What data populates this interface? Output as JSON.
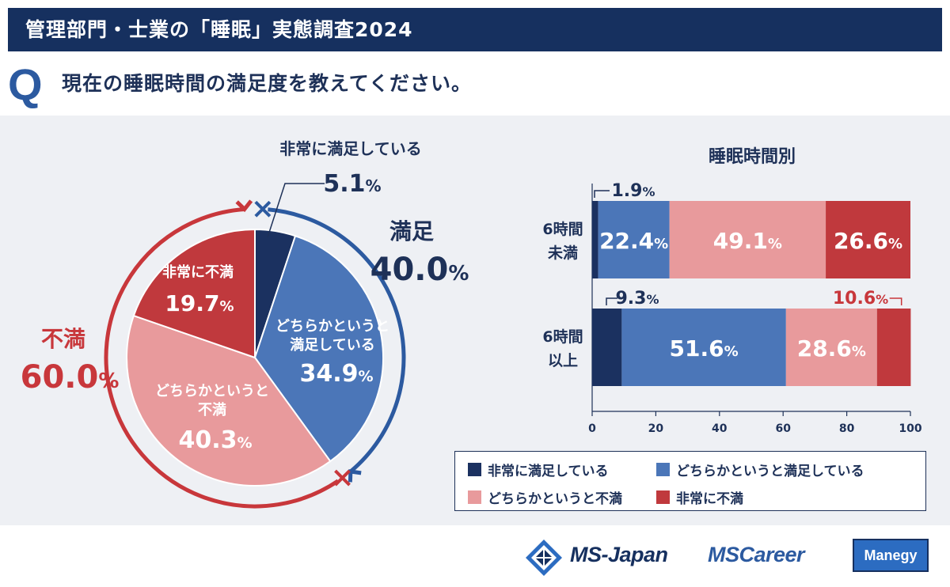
{
  "header": {
    "title": "管理部門・士業の「睡眠」実態調査2024"
  },
  "question": {
    "mark": "Q",
    "text": "現在の睡眠時間の満足度を教えてください。"
  },
  "colors": {
    "very_satisfied": "#1b3160",
    "somewhat_satisfied": "#4b76b8",
    "somewhat_dissatisfied": "#e89a9c",
    "very_dissatisfied": "#c0393d",
    "navy": "#1e3158",
    "blue_arrow": "#2c5aa0",
    "red_arrow": "#c8373b"
  },
  "chart_data": [
    {
      "type": "pie",
      "title": "",
      "categories": [
        "非常に満足している",
        "どちらかというと満足している",
        "どちらかというと不満",
        "非常に不満"
      ],
      "values": [
        5.1,
        34.9,
        40.3,
        19.7
      ],
      "value_labels": [
        "5.1",
        "34.9",
        "40.3",
        "19.7"
      ],
      "slice_labels": [
        "非常に満足している",
        "どちらかというと\n満足している",
        "どちらかというと\n不満",
        "非常に不満"
      ],
      "unit": "%",
      "groups": [
        {
          "name": "満足",
          "value": 40.0,
          "value_label": "40.0"
        },
        {
          "name": "不満",
          "value": 60.0,
          "value_label": "60.0"
        }
      ]
    },
    {
      "type": "bar",
      "orientation": "horizontal",
      "stacked": true,
      "title": "睡眠時間別",
      "categories": [
        "6時間\n未満",
        "6時間\n以上"
      ],
      "series": [
        {
          "name": "非常に満足している",
          "values": [
            1.9,
            9.3
          ],
          "labels": [
            "1.9",
            "9.3"
          ]
        },
        {
          "name": "どちらかというと満足している",
          "values": [
            22.4,
            51.6
          ],
          "labels": [
            "22.4",
            "51.6"
          ]
        },
        {
          "name": "どちらかというと不満",
          "values": [
            49.1,
            28.6
          ],
          "labels": [
            "49.1",
            "28.6"
          ]
        },
        {
          "name": "非常に不満",
          "values": [
            26.6,
            10.6
          ],
          "labels": [
            "26.6",
            "10.6"
          ]
        }
      ],
      "xlim": [
        0,
        100
      ],
      "xticks": [
        "0",
        "20",
        "40",
        "60",
        "80",
        "100"
      ],
      "unit": "%"
    }
  ],
  "legend": {
    "items": [
      "非常に満足している",
      "どちらかというと満足している",
      "どちらかというと不満",
      "非常に不満"
    ]
  },
  "logos": {
    "msjapan": "MS-Japan",
    "mscareer": "MSCareer",
    "manegy": "Manegy"
  }
}
